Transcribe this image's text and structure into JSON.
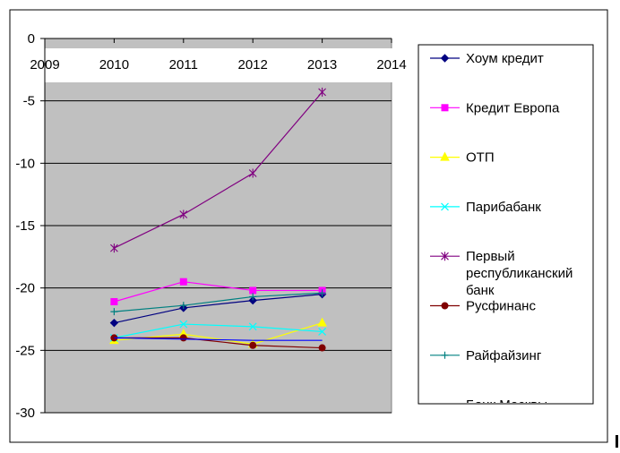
{
  "chart_data": {
    "type": "line",
    "title": "",
    "xlabel": "",
    "ylabel": "",
    "x_ticks": [
      "2009",
      "2010",
      "2011",
      "2012",
      "2013",
      "2014"
    ],
    "x": [
      2010,
      2011,
      2012,
      2013
    ],
    "xlim": [
      2009,
      2014
    ],
    "ylim": [
      -30,
      0
    ],
    "y_ticks": [
      "0",
      "-5",
      "-10",
      "-15",
      "-20",
      "-25",
      "-30"
    ],
    "grid": "horizontal",
    "legend_position": "right",
    "plot_background": "#c0c0c0",
    "series": [
      {
        "name": "Хоум кредит",
        "color": "#000080",
        "marker": "diamond",
        "values": [
          -22.8,
          -21.6,
          -21.0,
          -20.5
        ]
      },
      {
        "name": "Кредит Европа",
        "color": "#ff00ff",
        "marker": "square",
        "values": [
          -21.1,
          -19.5,
          -20.2,
          -20.2
        ]
      },
      {
        "name": "ОТП",
        "color": "#ffff00",
        "marker": "triangle",
        "values": [
          -24.2,
          -23.7,
          -24.5,
          -22.8
        ]
      },
      {
        "name": "Парибабанк",
        "color": "#00ffff",
        "marker": "x",
        "values": [
          -24.0,
          -22.9,
          -23.1,
          -23.5
        ]
      },
      {
        "name": "Первый республиканский банк",
        "legend_lines": [
          "Первый",
          "республиканский",
          "банк"
        ],
        "color": "#800080",
        "marker": "star",
        "values": [
          -16.8,
          -14.1,
          -10.8,
          -4.3
        ]
      },
      {
        "name": "Русфинанс",
        "color": "#800000",
        "marker": "circle",
        "values": [
          -24.0,
          -24.0,
          -24.6,
          -24.8
        ]
      },
      {
        "name": "Райфайзинг",
        "color": "#008080",
        "marker": "plus",
        "values": [
          -21.9,
          -21.4,
          -20.7,
          -20.4
        ]
      },
      {
        "name": "Банк Москвы",
        "color": "#0000ff",
        "marker": "none",
        "values": [
          -24.0,
          -24.1,
          -24.2,
          -24.2
        ]
      }
    ]
  }
}
